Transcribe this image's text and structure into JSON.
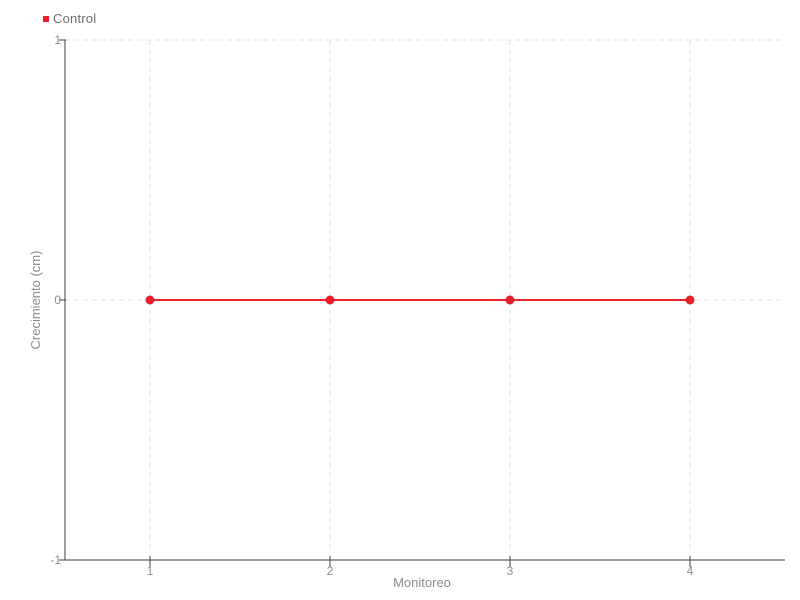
{
  "chart_data": {
    "type": "line",
    "title": "",
    "categories": [
      "1",
      "2",
      "3",
      "4"
    ],
    "series": [
      {
        "name": "Control",
        "color": "#e8202c",
        "values": [
          0,
          0,
          0,
          0
        ]
      }
    ],
    "xlabel": "Monitoreo",
    "ylabel": "Crecimiento (cm)",
    "ylim": [
      -1,
      1
    ],
    "yticks": [
      1,
      0,
      -1
    ],
    "grid": true,
    "grid_style": "dashed",
    "legend_position": "top-left",
    "marker": "circle"
  },
  "legend": {
    "items": [
      {
        "label": "Control",
        "color": "#e8202c"
      }
    ]
  },
  "colors": {
    "background": "#ffffff",
    "axis": "#3c3c3c",
    "grid": "#e3e3e3",
    "tick_text": "#8c8c8c",
    "axis_title_text": "#8c8c8c",
    "series_control": "#e8202c"
  }
}
